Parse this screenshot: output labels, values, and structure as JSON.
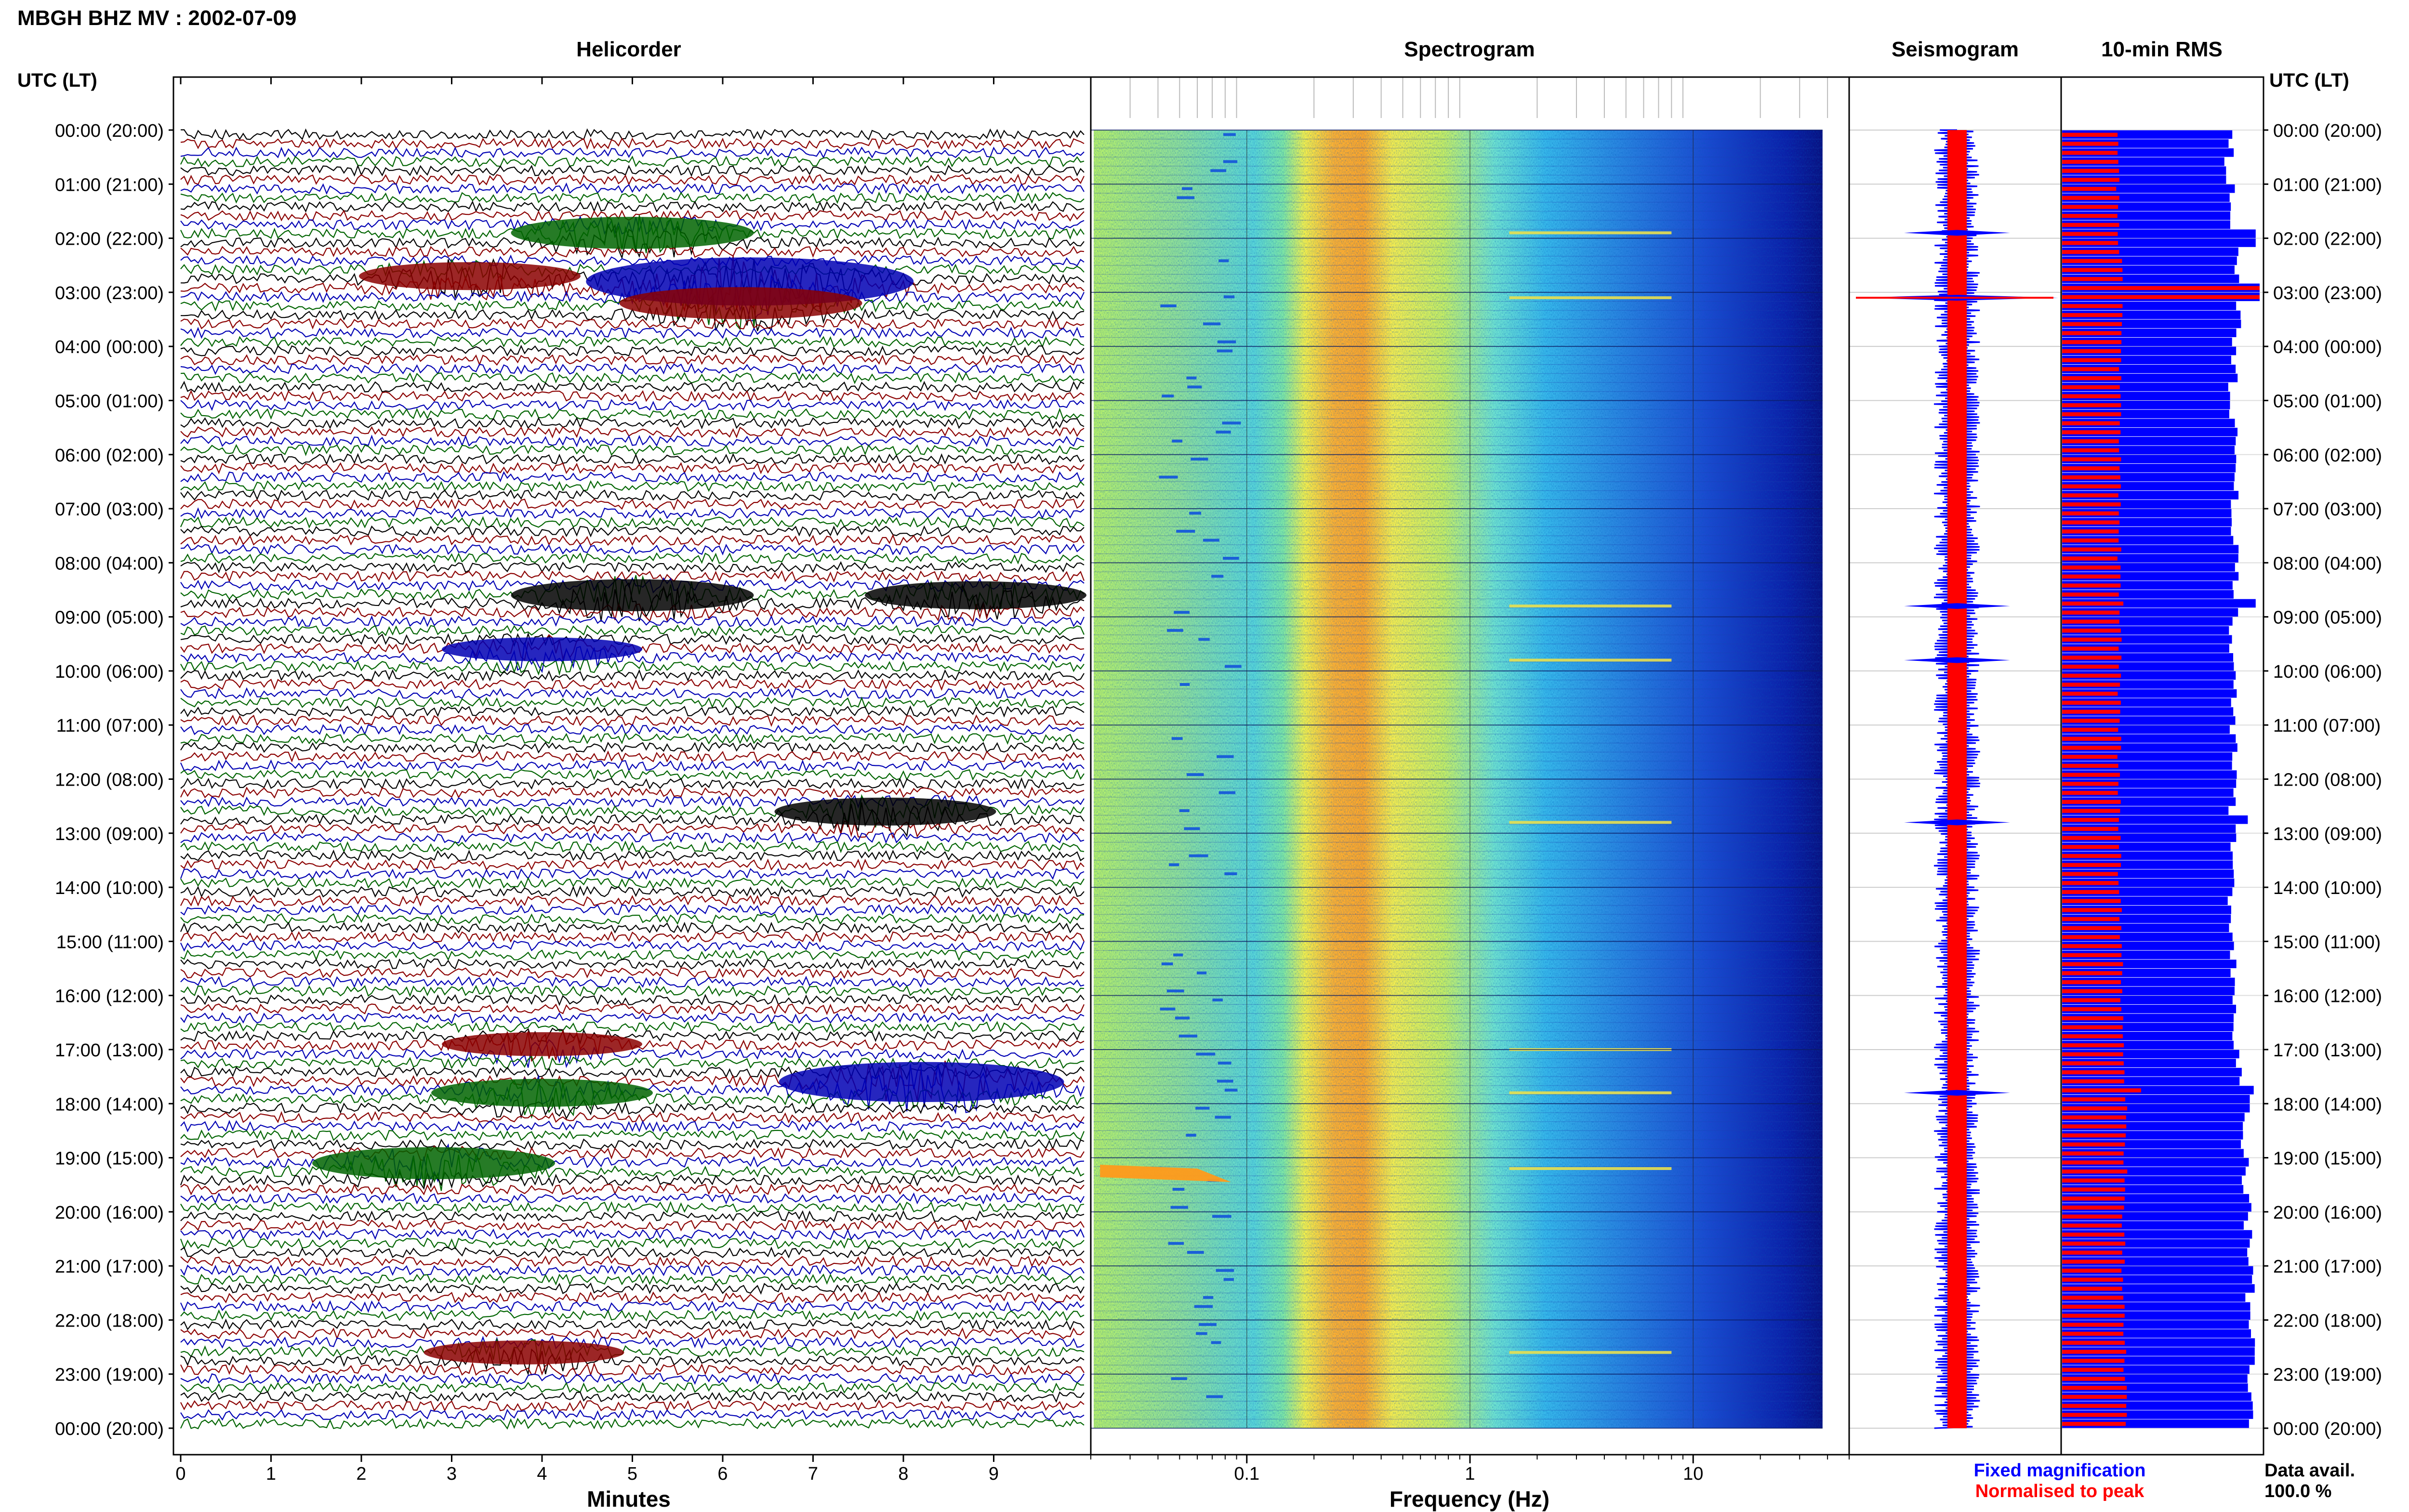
{
  "header": {
    "title": "MBGH BHZ MV : 2002-07-09",
    "utc_left": "UTC (LT)",
    "utc_right": "UTC (LT)"
  },
  "colors": {
    "trace_cycle": [
      "#000000",
      "#8b0000",
      "#0000b4",
      "#006400"
    ],
    "blue": "#0000ff",
    "red": "#ff0000"
  },
  "time_labels": [
    "00:00 (20:00)",
    "01:00 (21:00)",
    "02:00 (22:00)",
    "03:00 (23:00)",
    "04:00 (00:00)",
    "05:00 (01:00)",
    "06:00 (02:00)",
    "07:00 (03:00)",
    "08:00 (04:00)",
    "09:00 (05:00)",
    "10:00 (06:00)",
    "11:00 (07:00)",
    "12:00 (08:00)",
    "13:00 (09:00)",
    "14:00 (10:00)",
    "15:00 (11:00)",
    "16:00 (12:00)",
    "17:00 (13:00)",
    "18:00 (14:00)",
    "19:00 (15:00)",
    "20:00 (16:00)",
    "21:00 (17:00)",
    "22:00 (18:00)",
    "23:00 (19:00)",
    "00:00 (20:00)"
  ],
  "legend": {
    "fixed": "Fixed magnification",
    "normalised": "Normalised to peak",
    "avail_label": "Data avail.",
    "avail_value": "100.0 %"
  },
  "chart_data": [
    {
      "type": "line",
      "panel": "helicorder",
      "title": "Helicorder",
      "xlabel": "Minutes",
      "x_ticks": [
        "0",
        "1",
        "2",
        "3",
        "4",
        "5",
        "6",
        "7",
        "8",
        "9"
      ],
      "xlim": [
        0,
        10
      ],
      "rows": 144,
      "row_minutes": 10,
      "events": [
        {
          "hour": 1.9,
          "minute": 5.0,
          "color": "green",
          "strength": 0.6
        },
        {
          "hour": 2.7,
          "minute": 3.2,
          "color": "darkred",
          "strength": 0.5
        },
        {
          "hour": 2.8,
          "minute": 6.3,
          "color": "blue",
          "strength": 1.0
        },
        {
          "hour": 3.2,
          "minute": 6.2,
          "color": "darkred",
          "strength": 0.6
        },
        {
          "hour": 8.6,
          "minute": 5.0,
          "color": "black",
          "strength": 0.6
        },
        {
          "hour": 8.6,
          "minute": 8.8,
          "color": "black",
          "strength": 0.5
        },
        {
          "hour": 9.6,
          "minute": 4.0,
          "color": "blue",
          "strength": 0.4
        },
        {
          "hour": 12.6,
          "minute": 7.8,
          "color": "black",
          "strength": 0.5
        },
        {
          "hour": 16.9,
          "minute": 4.0,
          "color": "darkred",
          "strength": 0.4
        },
        {
          "hour": 17.6,
          "minute": 8.2,
          "color": "blue",
          "strength": 0.8
        },
        {
          "hour": 17.8,
          "minute": 4.0,
          "color": "green",
          "strength": 0.5
        },
        {
          "hour": 19.1,
          "minute": 2.8,
          "color": "green",
          "strength": 0.6
        },
        {
          "hour": 22.6,
          "minute": 3.8,
          "color": "darkred",
          "strength": 0.4
        }
      ]
    },
    {
      "type": "heatmap",
      "panel": "spectrogram",
      "title": "Spectrogram",
      "xlabel": "Frequency (Hz)",
      "x_scale": "log",
      "xlim": [
        0.02,
        50
      ],
      "x_ticks": [
        "0.1",
        "1",
        "10"
      ],
      "x_tick_values": [
        0.1,
        1,
        10
      ],
      "peak_band_hz": [
        0.2,
        0.5
      ],
      "cutoff_hz": 38,
      "yellow_streaks_hour": [
        1.9,
        3.1,
        8.8,
        9.8,
        12.8,
        17.0,
        17.8,
        19.2,
        22.6
      ],
      "low_freq_event_hour": 19.2
    },
    {
      "type": "line",
      "panel": "seismogram",
      "title": "Seismogram",
      "series": [
        {
          "name": "Fixed magnification",
          "color": "#0000ff"
        },
        {
          "name": "Normalised to peak",
          "color": "#ff0000"
        }
      ],
      "spikes_hour": [
        1.9,
        3.1,
        8.8,
        9.8,
        12.8,
        17.8
      ]
    },
    {
      "type": "bar",
      "panel": "rms",
      "title": "10-min RMS",
      "series": [
        {
          "name": "Fixed magnification",
          "color": "#0000ff",
          "hourly_values": [
            0.84,
            0.85,
            0.86,
            0.9,
            0.87,
            0.86,
            0.87,
            0.87,
            0.88,
            0.87,
            0.86,
            0.86,
            0.87,
            0.86,
            0.86,
            0.87,
            0.87,
            0.88,
            0.9,
            0.93,
            0.94,
            0.95,
            0.95,
            0.96,
            0.96
          ],
          "spikes": [
            {
              "hour": 3.0,
              "value": 1.0
            },
            {
              "hour": 2.0,
              "value": 0.98
            },
            {
              "hour": 8.8,
              "value": 0.98
            },
            {
              "hour": 12.8,
              "value": 0.94
            },
            {
              "hour": 17.8,
              "value": 0.97
            },
            {
              "hour": 18.0,
              "value": 0.95
            }
          ]
        },
        {
          "name": "Normalised to peak",
          "color": "#ff0000",
          "hourly_values": [
            0.28,
            0.28,
            0.29,
            0.3,
            0.29,
            0.29,
            0.29,
            0.29,
            0.29,
            0.3,
            0.29,
            0.29,
            0.29,
            0.29,
            0.29,
            0.3,
            0.3,
            0.31,
            0.33,
            0.32,
            0.31,
            0.31,
            0.31,
            0.32,
            0.32
          ],
          "spikes": [
            {
              "hour": 3.0,
              "value": 1.0
            },
            {
              "hour": 17.8,
              "value": 0.4
            },
            {
              "hour": 8.8,
              "value": 0.31
            },
            {
              "hour": 19.2,
              "value": 0.33
            }
          ]
        }
      ]
    }
  ]
}
